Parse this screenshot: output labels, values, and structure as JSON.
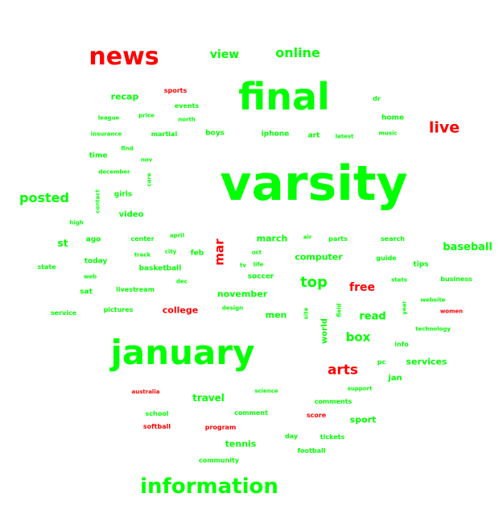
{
  "colors": {
    "green": "#00ff00",
    "red": "#ff0000",
    "background": "#ffffff"
  },
  "words": [
    {
      "text": "varsity",
      "color": "green"
    },
    {
      "text": "final",
      "color": "green"
    },
    {
      "text": "january",
      "color": "green"
    },
    {
      "text": "news",
      "color": "red"
    },
    {
      "text": "information",
      "color": "green"
    },
    {
      "text": "online",
      "color": "green"
    },
    {
      "text": "view",
      "color": "green"
    },
    {
      "text": "live",
      "color": "red"
    },
    {
      "text": "posted",
      "color": "green"
    },
    {
      "text": "top",
      "color": "green"
    },
    {
      "text": "arts",
      "color": "red"
    },
    {
      "text": "free",
      "color": "red"
    },
    {
      "text": "box",
      "color": "green"
    },
    {
      "text": "baseball",
      "color": "green"
    },
    {
      "text": "read",
      "color": "green"
    },
    {
      "text": "mar",
      "color": "red"
    },
    {
      "text": "travel",
      "color": "green"
    },
    {
      "text": "st",
      "color": "green"
    },
    {
      "text": "recap",
      "color": "green"
    },
    {
      "text": "computer",
      "color": "green"
    },
    {
      "text": "college",
      "color": "red"
    },
    {
      "text": "march",
      "color": "green"
    },
    {
      "text": "november",
      "color": "green"
    },
    {
      "text": "men",
      "color": "green"
    },
    {
      "text": "services",
      "color": "green"
    },
    {
      "text": "sport",
      "color": "green"
    },
    {
      "text": "tennis",
      "color": "green"
    },
    {
      "text": "video",
      "color": "green"
    },
    {
      "text": "world",
      "color": "green"
    },
    {
      "text": "jan",
      "color": "green"
    },
    {
      "text": "sports",
      "color": "red"
    },
    {
      "text": "dr",
      "color": "green"
    },
    {
      "text": "home",
      "color": "green"
    },
    {
      "text": "events",
      "color": "green"
    },
    {
      "text": "league",
      "color": "green"
    },
    {
      "text": "price",
      "color": "green"
    },
    {
      "text": "north",
      "color": "green"
    },
    {
      "text": "insurance",
      "color": "green"
    },
    {
      "text": "martial",
      "color": "green"
    },
    {
      "text": "boys",
      "color": "green"
    },
    {
      "text": "iphone",
      "color": "green"
    },
    {
      "text": "art",
      "color": "green"
    },
    {
      "text": "latest",
      "color": "green"
    },
    {
      "text": "music",
      "color": "green"
    },
    {
      "text": "find",
      "color": "green"
    },
    {
      "text": "time",
      "color": "green"
    },
    {
      "text": "nov",
      "color": "green"
    },
    {
      "text": "december",
      "color": "green"
    },
    {
      "text": "care",
      "color": "green"
    },
    {
      "text": "girls",
      "color": "green"
    },
    {
      "text": "contact",
      "color": "green"
    },
    {
      "text": "high",
      "color": "green"
    },
    {
      "text": "ago",
      "color": "green"
    },
    {
      "text": "center",
      "color": "green"
    },
    {
      "text": "april",
      "color": "green"
    },
    {
      "text": "air",
      "color": "green"
    },
    {
      "text": "parts",
      "color": "green"
    },
    {
      "text": "search",
      "color": "green"
    },
    {
      "text": "state",
      "color": "green"
    },
    {
      "text": "today",
      "color": "green"
    },
    {
      "text": "track",
      "color": "green"
    },
    {
      "text": "city",
      "color": "green"
    },
    {
      "text": "feb",
      "color": "green"
    },
    {
      "text": "tv",
      "color": "green"
    },
    {
      "text": "life",
      "color": "green"
    },
    {
      "text": "oct",
      "color": "green"
    },
    {
      "text": "guide",
      "color": "green"
    },
    {
      "text": "tips",
      "color": "green"
    },
    {
      "text": "web",
      "color": "green"
    },
    {
      "text": "basketball",
      "color": "green"
    },
    {
      "text": "soccer",
      "color": "green"
    },
    {
      "text": "dec",
      "color": "green"
    },
    {
      "text": "stats",
      "color": "green"
    },
    {
      "text": "business",
      "color": "green"
    },
    {
      "text": "sat",
      "color": "green"
    },
    {
      "text": "livestream",
      "color": "green"
    },
    {
      "text": "website",
      "color": "green"
    },
    {
      "text": "service",
      "color": "green"
    },
    {
      "text": "pictures",
      "color": "green"
    },
    {
      "text": "design",
      "color": "green"
    },
    {
      "text": "site",
      "color": "green"
    },
    {
      "text": "field",
      "color": "green"
    },
    {
      "text": "year",
      "color": "green"
    },
    {
      "text": "women",
      "color": "red"
    },
    {
      "text": "technology",
      "color": "green"
    },
    {
      "text": "info",
      "color": "green"
    },
    {
      "text": "pc",
      "color": "green"
    },
    {
      "text": "australia",
      "color": "red"
    },
    {
      "text": "science",
      "color": "green"
    },
    {
      "text": "support",
      "color": "green"
    },
    {
      "text": "comments",
      "color": "green"
    },
    {
      "text": "school",
      "color": "green"
    },
    {
      "text": "comment",
      "color": "green"
    },
    {
      "text": "score",
      "color": "red"
    },
    {
      "text": "softball",
      "color": "red"
    },
    {
      "text": "program",
      "color": "red"
    },
    {
      "text": "day",
      "color": "green"
    },
    {
      "text": "tickets",
      "color": "green"
    },
    {
      "text": "football",
      "color": "green"
    },
    {
      "text": "community",
      "color": "green"
    }
  ]
}
